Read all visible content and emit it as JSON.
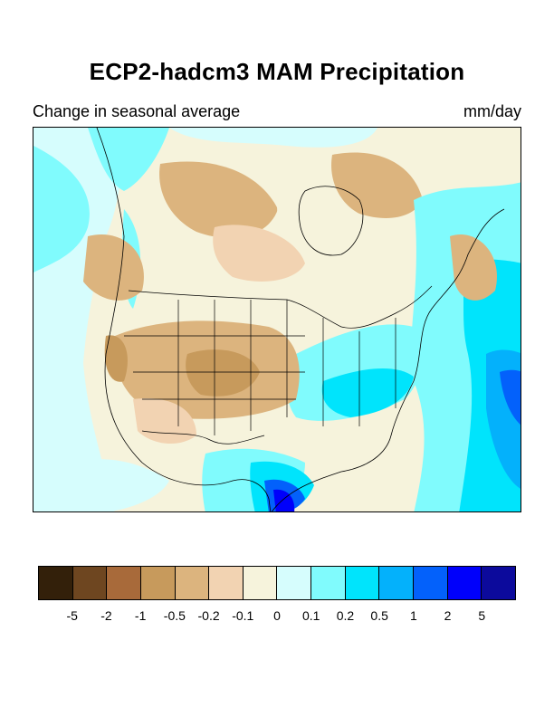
{
  "title": "ECP2-hadcm3 MAM Precipitation",
  "subtitle_left": "Change in seasonal average",
  "subtitle_right": "mm/day",
  "map": {
    "region": "North America",
    "projection": "lambert-conformal",
    "field": "precipitation change"
  },
  "colorbar": {
    "colors": [
      "#33200a",
      "#6e4620",
      "#a86a3a",
      "#c79a5c",
      "#dcb47e",
      "#f2d3b2",
      "#f6f3dc",
      "#d6fdfd",
      "#80fbfd",
      "#00e4fc",
      "#04b1fb",
      "#0361fb",
      "#0000fb",
      "#0c0a9c"
    ],
    "tick_labels": [
      "-5",
      "-2",
      "-1",
      "-0.5",
      "-0.2",
      "-0.1",
      "0",
      "0.1",
      "0.2",
      "0.5",
      "1",
      "2",
      "5"
    ]
  }
}
